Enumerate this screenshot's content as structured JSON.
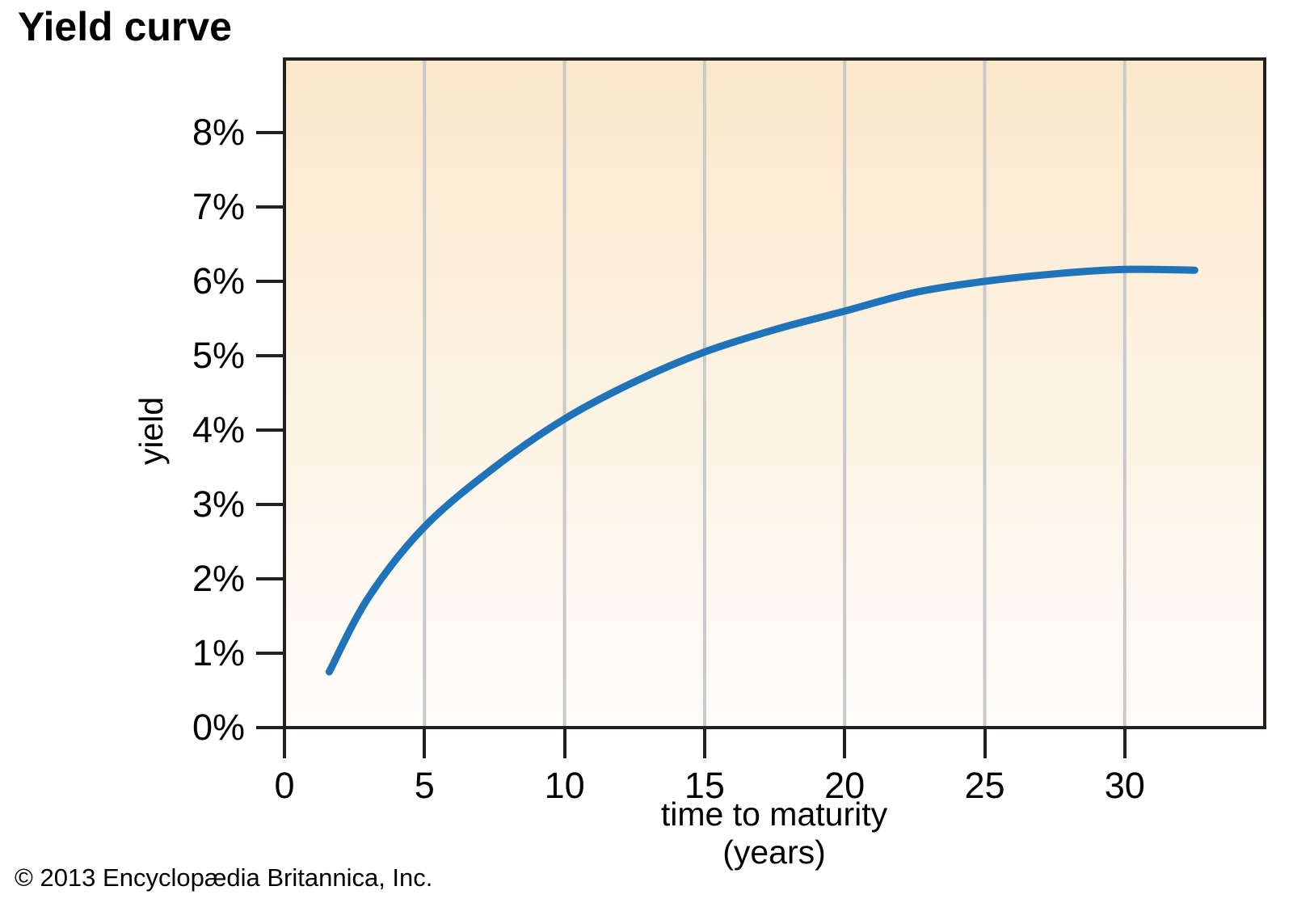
{
  "header": {
    "title": "Yield curve"
  },
  "chart_data": {
    "type": "line",
    "title": "Yield curve",
    "xlabel_line1": "time to maturity",
    "xlabel_line2": "(years)",
    "ylabel": "yield",
    "xlim": [
      0,
      35
    ],
    "ylim": [
      0,
      9
    ],
    "grid": "vertical-only",
    "legend": "none",
    "x_gridlines": [
      5,
      10,
      15,
      20,
      25,
      30
    ],
    "x_ticks": [
      {
        "value": 0,
        "label": "0"
      },
      {
        "value": 5,
        "label": "5"
      },
      {
        "value": 10,
        "label": "10"
      },
      {
        "value": 15,
        "label": "15"
      },
      {
        "value": 20,
        "label": "20"
      },
      {
        "value": 25,
        "label": "25"
      },
      {
        "value": 30,
        "label": "30"
      }
    ],
    "y_ticks": [
      {
        "value": 0,
        "label": "0%"
      },
      {
        "value": 1,
        "label": "1%"
      },
      {
        "value": 2,
        "label": "2%"
      },
      {
        "value": 3,
        "label": "3%"
      },
      {
        "value": 4,
        "label": "4%"
      },
      {
        "value": 5,
        "label": "5%"
      },
      {
        "value": 6,
        "label": "6%"
      },
      {
        "value": 7,
        "label": "7%"
      },
      {
        "value": 8,
        "label": "8%"
      }
    ],
    "colors": {
      "curve": "#1f73b9",
      "gridline": "#c9c9c9",
      "frame": "#231f20",
      "bg_top": "#fbe8cb",
      "bg_bottom": "#fefdfb"
    },
    "series": [
      {
        "name": "yield curve",
        "color": "#1f73b9",
        "points": [
          [
            1.6,
            0.75
          ],
          [
            3,
            1.75
          ],
          [
            5,
            2.7
          ],
          [
            7.5,
            3.5
          ],
          [
            10,
            4.15
          ],
          [
            12.5,
            4.65
          ],
          [
            15,
            5.05
          ],
          [
            17.5,
            5.35
          ],
          [
            20,
            5.6
          ],
          [
            22.5,
            5.85
          ],
          [
            25,
            6.0
          ],
          [
            27.5,
            6.1
          ],
          [
            30,
            6.16
          ],
          [
            32.5,
            6.15
          ]
        ]
      }
    ]
  },
  "footer": {
    "copyright": "© 2013 Encyclopædia Britannica, Inc."
  }
}
